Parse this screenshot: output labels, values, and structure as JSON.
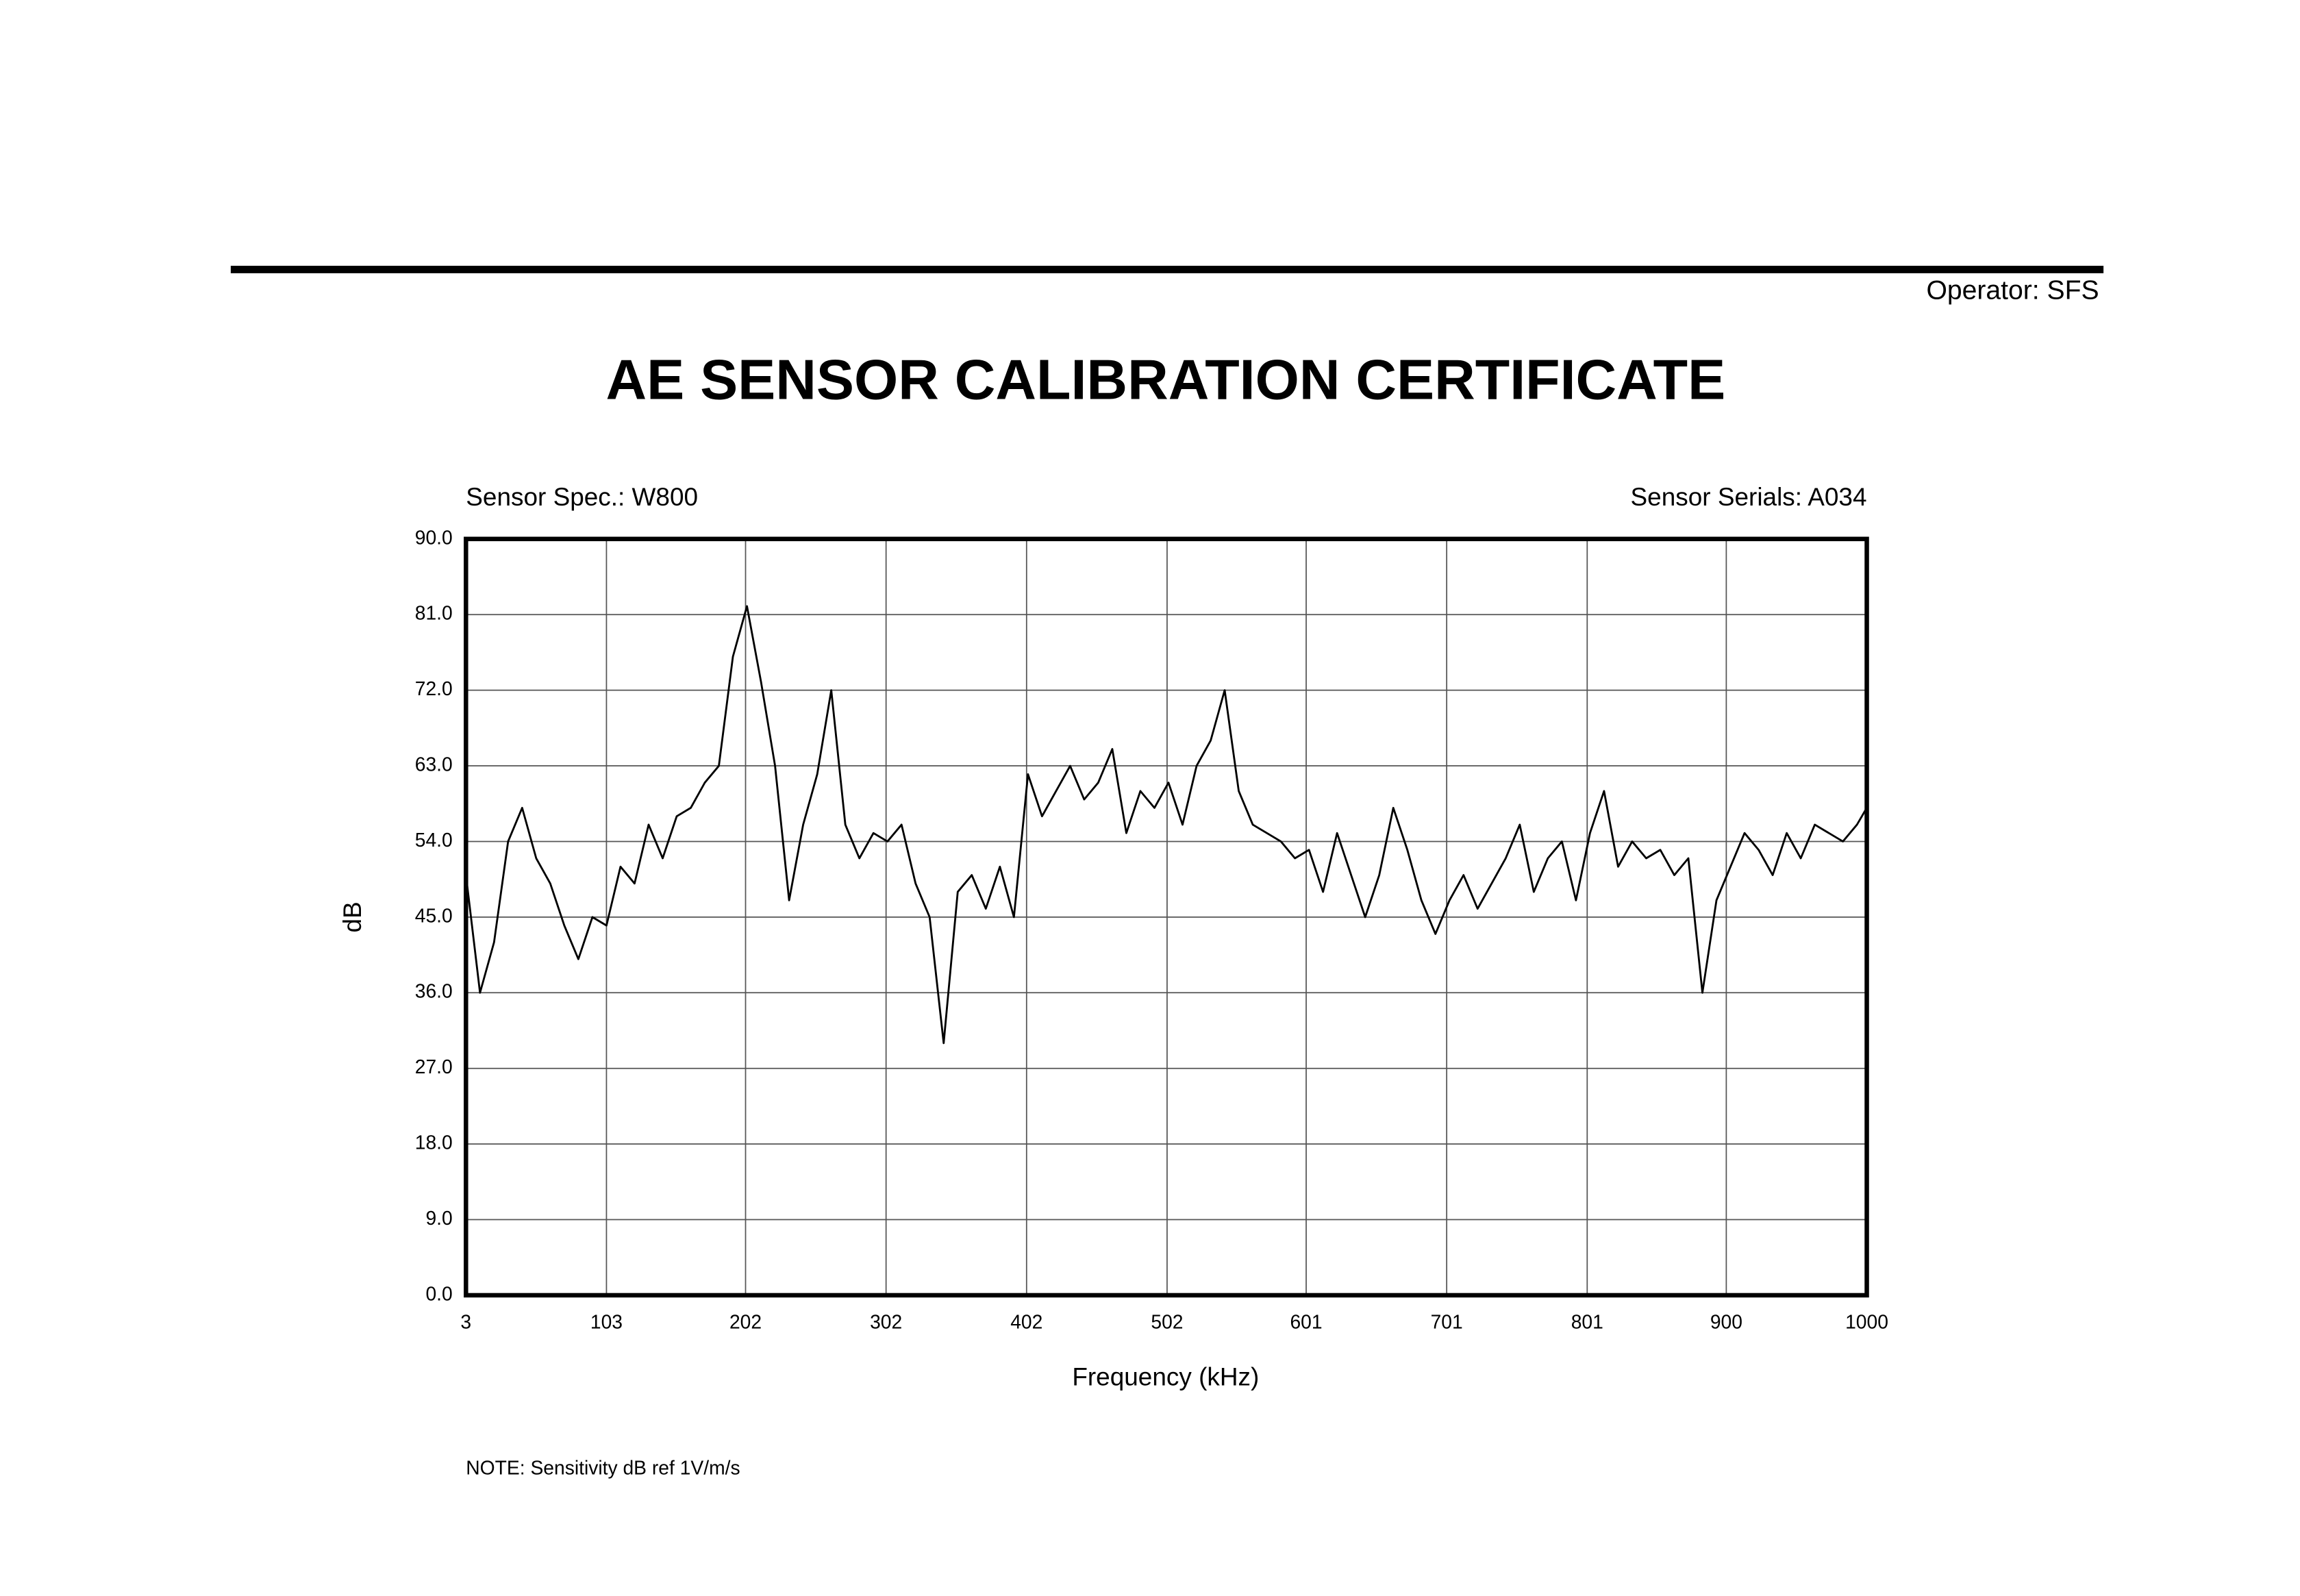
{
  "header": {
    "operator": "Operator: SFS"
  },
  "chart_data": {
    "type": "line",
    "title": "AE SENSOR CALIBRATION CERTIFICATE",
    "sensor_spec": "Sensor Spec.: W800",
    "sensor_serials": "Sensor Serials: A034",
    "xlabel": "Frequency (kHz)",
    "ylabel": "dB",
    "x": [
      3,
      13,
      23,
      33,
      43,
      53,
      63,
      73,
      83,
      93,
      103,
      113,
      123,
      133,
      143,
      153,
      163,
      173,
      183,
      193,
      203,
      213,
      223,
      233,
      243,
      253,
      263,
      273,
      283,
      293,
      303,
      313,
      323,
      333,
      343,
      353,
      363,
      373,
      383,
      393,
      403,
      413,
      423,
      433,
      443,
      453,
      463,
      473,
      483,
      493,
      503,
      513,
      523,
      533,
      543,
      553,
      563,
      573,
      583,
      593,
      603,
      613,
      623,
      633,
      643,
      653,
      663,
      673,
      683,
      693,
      703,
      713,
      723,
      733,
      743,
      753,
      763,
      773,
      783,
      793,
      803,
      813,
      823,
      833,
      843,
      853,
      863,
      873,
      883,
      893,
      903,
      913,
      923,
      933,
      943,
      953,
      963,
      973,
      983,
      993,
      1000
    ],
    "series": [
      {
        "name": "dB",
        "color": "#000000",
        "values": [
          50,
          36,
          42,
          54,
          58,
          52,
          49,
          44,
          40,
          45,
          44,
          51,
          49,
          56,
          52,
          57,
          58,
          61,
          63,
          76,
          82,
          73,
          63,
          47,
          56,
          62,
          72,
          56,
          52,
          55,
          54,
          56,
          49,
          45,
          30,
          48,
          50,
          46,
          51,
          45,
          62,
          57,
          60,
          63,
          59,
          61,
          65,
          55,
          60,
          58,
          61,
          56,
          63,
          66,
          72,
          60,
          56,
          55,
          54,
          52,
          53,
          48,
          55,
          50,
          45,
          50,
          58,
          53,
          47,
          43,
          47,
          50,
          46,
          49,
          52,
          56,
          48,
          52,
          54,
          47,
          55,
          60,
          51,
          54,
          52,
          53,
          50,
          52,
          36,
          47,
          51,
          55,
          53,
          50,
          55,
          52,
          56,
          55,
          54,
          56,
          58
        ]
      }
    ],
    "xlim": [
      3,
      1000
    ],
    "ylim": [
      0,
      90
    ],
    "xticks": [
      3,
      103,
      202,
      302,
      402,
      502,
      601,
      701,
      801,
      900,
      1000
    ],
    "yticks": [
      {
        "value": 0,
        "label": "0.0"
      },
      {
        "value": 9,
        "label": "9.0"
      },
      {
        "value": 18,
        "label": "18.0"
      },
      {
        "value": 27,
        "label": "27.0"
      },
      {
        "value": 36,
        "label": "36.0"
      },
      {
        "value": 45,
        "label": "45.0"
      },
      {
        "value": 54,
        "label": "54.0"
      },
      {
        "value": 63,
        "label": "63.0"
      },
      {
        "value": 72,
        "label": "72.0"
      },
      {
        "value": 81,
        "label": "81.0"
      },
      {
        "value": 90,
        "label": "90.0"
      }
    ],
    "grid": true
  },
  "note": "NOTE:  Sensitivity dB ref 1V/m/s"
}
